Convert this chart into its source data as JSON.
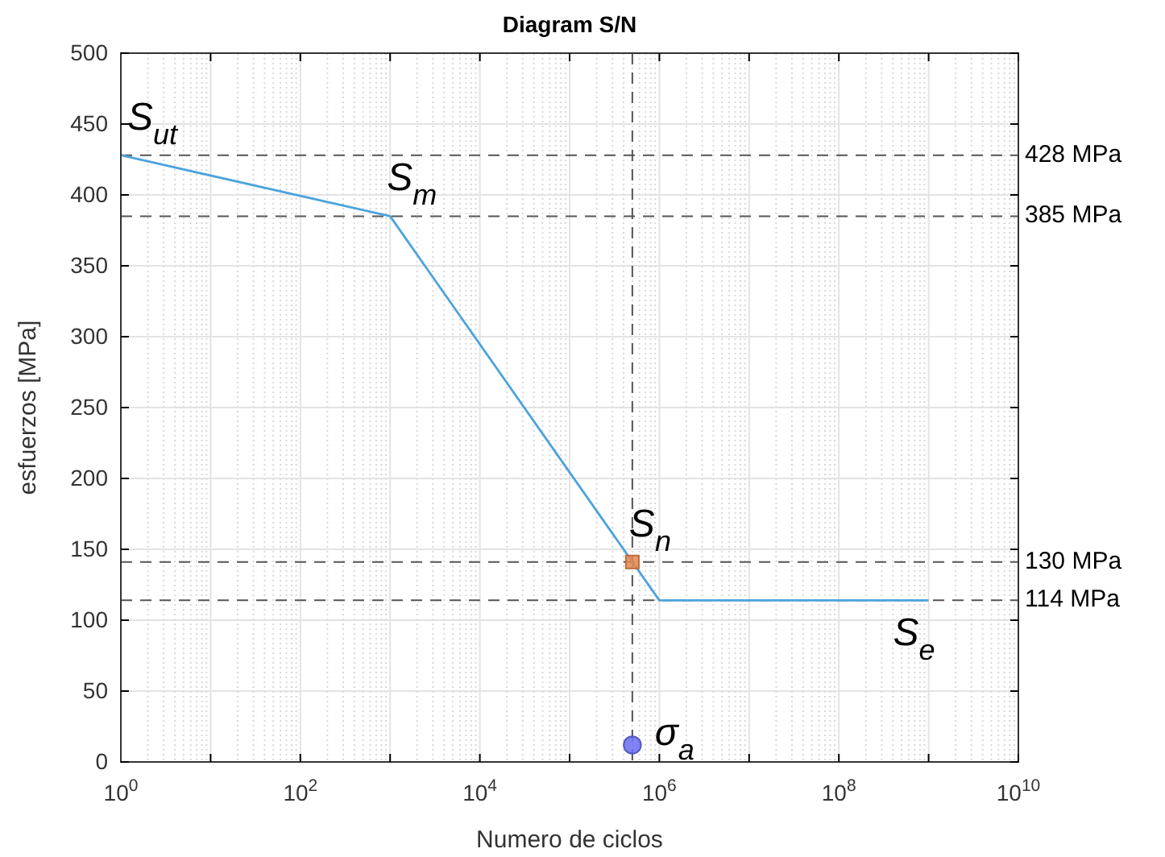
{
  "chart_data": {
    "type": "line",
    "title": "Diagram S/N",
    "xlabel": "Numero de ciclos",
    "ylabel": "esfuerzos [MPa]",
    "log": "x",
    "grid": true,
    "xlim": [
      1,
      10000000000
    ],
    "ylim": [
      0,
      500
    ],
    "xticks": [
      {
        "value": 1,
        "label": "10$^{0}$"
      },
      {
        "value": 10,
        "label": null
      },
      {
        "value": 100,
        "label": "10$^{2}$"
      },
      {
        "value": 1000,
        "label": null
      },
      {
        "value": 10000,
        "label": "10$^{4}$"
      },
      {
        "value": 100000,
        "label": null
      },
      {
        "value": 1000000,
        "label": "10$^{6}$"
      },
      {
        "value": 10000000,
        "label": null
      },
      {
        "value": 100000000,
        "label": "10$^{8}$"
      },
      {
        "value": 1000000000,
        "label": null
      },
      {
        "value": 10000000000,
        "label": "10$^{10}$"
      }
    ],
    "yticks": [
      0,
      50,
      100,
      150,
      200,
      250,
      300,
      350,
      400,
      450,
      500
    ],
    "series": [
      {
        "color": "#4ca3dd",
        "marker": "none",
        "x": [
          1,
          1000,
          1000000,
          1000000000
        ],
        "values": [
          428,
          385,
          114,
          114
        ]
      },
      {
        "type": "scatter",
        "color": "#e8874f",
        "marker": "square",
        "x": [
          500000
        ],
        "values": [
          141
        ]
      },
      {
        "type": "scatter",
        "color": "#6b6cf2",
        "marker": "circle",
        "x": [
          500000
        ],
        "values": [
          12
        ]
      }
    ],
    "ref_lines": [
      {
        "axis": "y",
        "value": 428,
        "label": "428 MPa",
        "color": "#555555",
        "line_style": "dashed"
      },
      {
        "axis": "y",
        "value": 385,
        "label": "385 MPa",
        "color": "#555555",
        "line_style": "dashed"
      },
      {
        "axis": "y",
        "value": 141,
        "label": "130 MPa",
        "color": "#555555",
        "line_style": "dashed"
      },
      {
        "axis": "y",
        "value": 114,
        "label": "114 MPa",
        "color": "#555555",
        "line_style": "dashed"
      },
      {
        "axis": "x",
        "value": 500000,
        "label": null,
        "color": "#555555",
        "line_style": "dashed"
      }
    ],
    "annotations": [
      {
        "text": "S$_{ut}$",
        "x": 1,
        "y": 428
      },
      {
        "text": "S$_{m}$",
        "x": 1000,
        "y": 385
      },
      {
        "text": "S$_{n}$",
        "x": 500000,
        "y": 141
      },
      {
        "text": "S$_{e}$",
        "x": 1000000000,
        "y": 114
      },
      {
        "text": "σ$_{a}$",
        "x": 500000,
        "y": 12
      }
    ]
  }
}
